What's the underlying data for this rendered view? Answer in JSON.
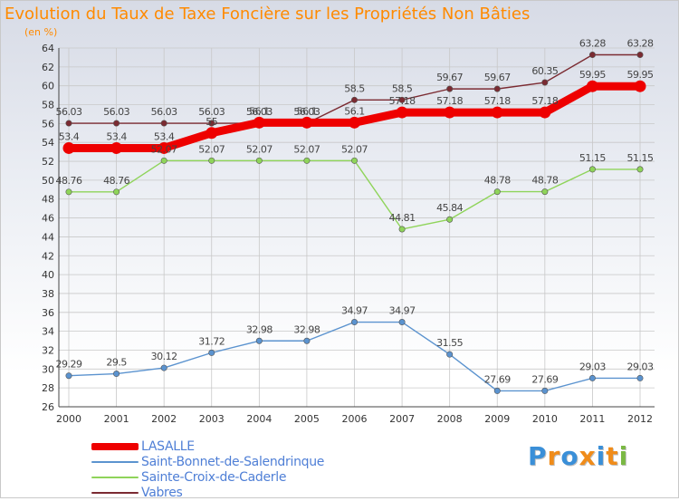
{
  "header": {
    "title": "Evolution du Taux de Taxe Foncière sur les Propriétés Non Bâties",
    "unit": "(en %)"
  },
  "logo": {
    "text": "Proxiti",
    "colors": [
      "#3a8fd8",
      "#f08c1a",
      "#3a8fd8",
      "#f08c1a",
      "#3a8fd8",
      "#f08c1a",
      "#7ab843"
    ]
  },
  "chart_data": {
    "type": "line",
    "title": "Evolution du Taux de Taxe Foncière sur les Propriétés Non Bâties",
    "ylabel": "(en %)",
    "xlabel": "",
    "x": [
      "2000",
      "2001",
      "2002",
      "2003",
      "2004",
      "2005",
      "2006",
      "2007",
      "2008",
      "2009",
      "2010",
      "2011",
      "2012"
    ],
    "ylim": [
      26,
      64
    ],
    "ytick_step": 2,
    "grid": true,
    "legend_position": "bottom-left",
    "series": [
      {
        "name": "LASALLE",
        "color": "#ee0000",
        "values": [
          53.4,
          53.4,
          53.4,
          55,
          56.1,
          56.1,
          56.1,
          57.18,
          57.18,
          57.18,
          57.18,
          59.95,
          59.95
        ],
        "labels": [
          "53.4",
          "53.4",
          "53.4",
          "55",
          "56.1",
          "56.1",
          "56.1",
          "57.18",
          "57.18",
          "57.18",
          "57.18",
          "59.95",
          "59.95"
        ]
      },
      {
        "name": "Saint-Bonnet-de-Salendrinque",
        "color": "#5b93cf",
        "values": [
          29.29,
          29.5,
          30.12,
          31.72,
          32.98,
          32.98,
          34.97,
          34.97,
          31.55,
          27.69,
          27.69,
          29.03,
          29.03
        ],
        "labels": [
          "29.29",
          "29.5",
          "30.12",
          "31.72",
          "32.98",
          "32.98",
          "34.97",
          "34.97",
          "31.55",
          "27.69",
          "27.69",
          "29.03",
          "29.03"
        ]
      },
      {
        "name": "Sainte-Croix-de-Caderle",
        "color": "#8fd45a",
        "values": [
          48.76,
          48.76,
          52.07,
          52.07,
          52.07,
          52.07,
          52.07,
          44.81,
          45.84,
          48.78,
          48.78,
          51.15,
          51.15
        ],
        "labels": [
          "48.76",
          "48.76",
          "52.07",
          "52.07",
          "52.07",
          "52.07",
          "52.07",
          "44.81",
          "45.84",
          "48.78",
          "48.78",
          "51.15",
          "51.15"
        ]
      },
      {
        "name": "Vabres",
        "color": "#7b2b32",
        "values": [
          56.03,
          56.03,
          56.03,
          56.03,
          56.03,
          56.03,
          58.5,
          58.5,
          59.67,
          59.67,
          60.35,
          63.28,
          63.28
        ],
        "labels": [
          "56.03",
          "56.03",
          "56.03",
          "56.03",
          "56.03",
          "56.03",
          "58.5",
          "58.5",
          "59.67",
          "59.67",
          "60.35",
          "63.28",
          "63.28"
        ]
      }
    ]
  }
}
